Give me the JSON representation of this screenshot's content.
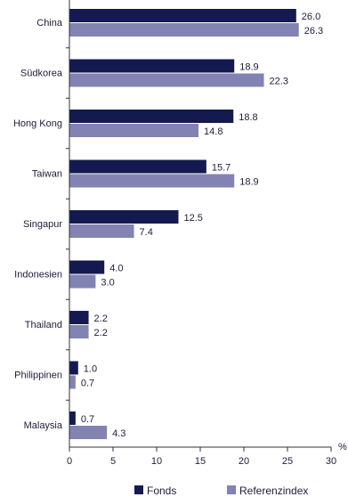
{
  "chart_data": {
    "type": "bar",
    "orientation": "horizontal",
    "categories": [
      "China",
      "Südkorea",
      "Hong Kong",
      "Taiwan",
      "Singapur",
      "Indonesien",
      "Thailand",
      "Philippinen",
      "Malaysia"
    ],
    "series": [
      {
        "name": "Fonds",
        "values": [
          26.0,
          18.9,
          18.8,
          15.7,
          12.5,
          4.0,
          2.2,
          1.0,
          0.7
        ],
        "color": "#141a4f"
      },
      {
        "name": "Referenzindex",
        "values": [
          26.3,
          22.3,
          14.8,
          18.9,
          7.4,
          3.0,
          2.2,
          0.7,
          4.3
        ],
        "color": "#8283b3"
      }
    ],
    "xlim": [
      0,
      30
    ],
    "xticks": [
      0,
      5,
      10,
      15,
      20,
      25,
      30
    ],
    "x_unit": "%",
    "value_format_decimals": 1,
    "legend_placement": "bottom",
    "grid": false
  }
}
